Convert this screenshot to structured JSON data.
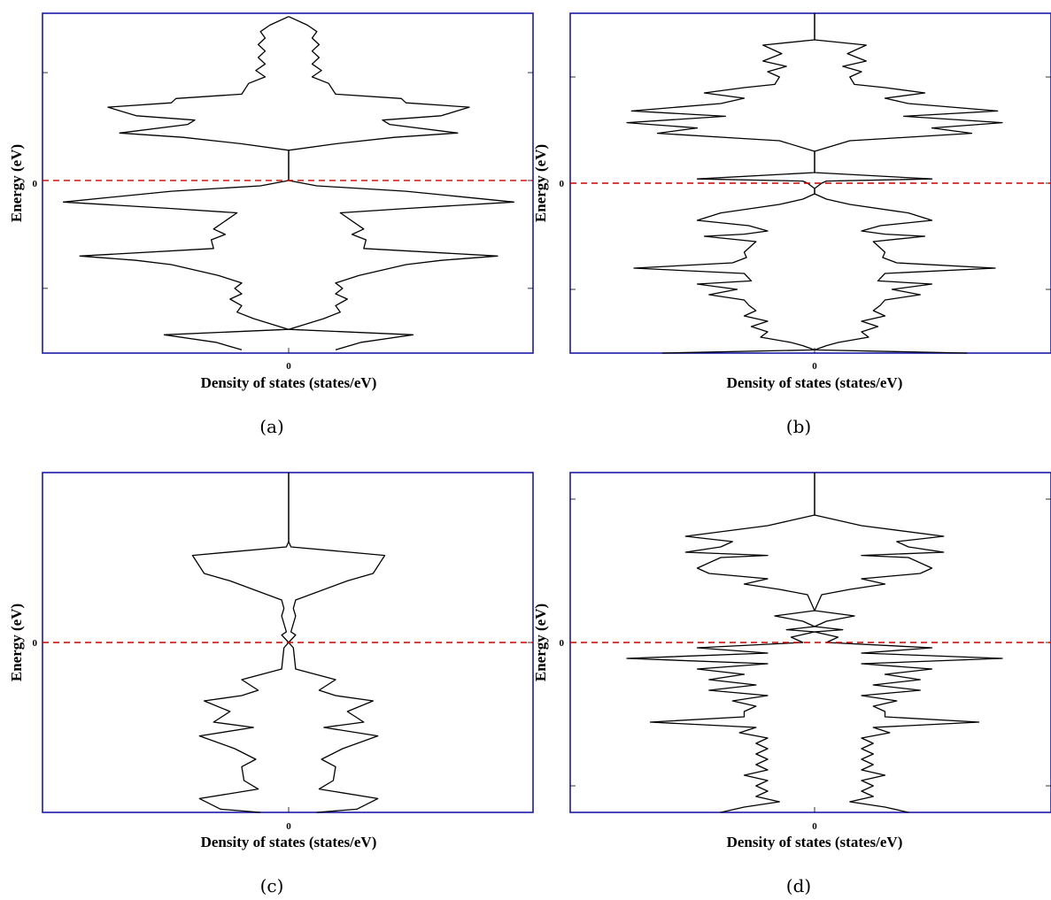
{
  "colors": {
    "frame": "#1a1aa6",
    "curve": "#000000",
    "fermi": "#cc0000",
    "background": "#ffffff"
  },
  "panels": [
    {
      "caption": "(a)",
      "chart_data": {
        "type": "line",
        "xlabel": "Density of states (states/eV)",
        "ylabel": "Energy (eV)",
        "xtick_labels": [
          "0"
        ],
        "ytick_labels": [
          "0"
        ],
        "fermi_level": 0,
        "line_style_fermi": "dashed",
        "grid": false,
        "ylim": [
          -1.6,
          1.55
        ],
        "ytick_values": [
          -1,
          0,
          1
        ],
        "xlim": [
          -1,
          1
        ],
        "symmetric_about_zero": true,
        "series": [
          {
            "energy": [
              1.52,
              1.44,
              1.38,
              1.32,
              1.26,
              1.2,
              1.14,
              1.08,
              1.02,
              0.96,
              0.9,
              0.8,
              0.76,
              0.72,
              0.68,
              0.6,
              0.56,
              0.52,
              0.44,
              0.4,
              0.34,
              0.28,
              0.22,
              0.18,
              0.15,
              0.12,
              0.1,
              0.08,
              0.04,
              0.02,
              0,
              -0.05,
              -0.1,
              -0.2,
              -0.26,
              -0.3,
              -0.45,
              -0.5,
              -0.55,
              -0.63,
              -0.7,
              -0.74,
              -0.78,
              -0.88,
              -0.95,
              -1.0,
              -1.05,
              -1.1,
              -1.16,
              -1.22,
              -1.28,
              -1.38,
              -1.43,
              -1.5,
              -1.57
            ],
            "dos": [
              0.0,
              0.08,
              0.12,
              0.1,
              0.13,
              0.1,
              0.13,
              0.1,
              0.14,
              0.1,
              0.17,
              0.2,
              0.48,
              0.5,
              0.77,
              0.65,
              0.4,
              0.43,
              0.72,
              0.45,
              0.2,
              0.0,
              0.0,
              0.0,
              0.0,
              0.0,
              0.0,
              0.0,
              0.0,
              0.0,
              0.0,
              0.12,
              0.5,
              0.96,
              0.5,
              0.22,
              0.32,
              0.27,
              0.33,
              0.32,
              0.89,
              0.65,
              0.5,
              0.3,
              0.2,
              0.23,
              0.2,
              0.25,
              0.2,
              0.22,
              0.15,
              0.0,
              0.53,
              0.31,
              0.2
            ]
          }
        ]
      }
    },
    {
      "caption": "(b)",
      "chart_data": {
        "type": "line",
        "xlabel": "Density of states (states/eV)",
        "ylabel": "Energy (eV)",
        "xtick_labels": [
          "0"
        ],
        "ytick_labels": [
          "0"
        ],
        "fermi_level": 0,
        "line_style_fermi": "dashed",
        "grid": false,
        "ylim": [
          -1.6,
          1.6
        ],
        "ytick_values": [
          -1,
          0,
          1
        ],
        "xlim": [
          -1,
          1
        ],
        "symmetric_about_zero": true,
        "series": [
          {
            "energy": [
              1.6,
              1.35,
              1.3,
              1.22,
              1.15,
              1.1,
              1.05,
              1.0,
              0.93,
              0.9,
              0.85,
              0.8,
              0.75,
              0.68,
              0.63,
              0.57,
              0.52,
              0.47,
              0.42,
              0.4,
              0.3,
              0.25,
              0.2,
              0.15,
              0.1,
              0.04,
              0.02,
              0.0,
              -0.05,
              -0.1,
              -0.15,
              -0.2,
              -0.28,
              -0.35,
              -0.4,
              -0.45,
              -0.48,
              -0.5,
              -0.55,
              -0.65,
              -0.7,
              -0.75,
              -0.8,
              -0.85,
              -0.92,
              -0.95,
              -1.0,
              -1.05,
              -1.1,
              -1.15,
              -1.2,
              -1.25,
              -1.3,
              -1.35,
              -1.4,
              -1.45,
              -1.5,
              -1.53,
              -1.57,
              -1.6
            ],
            "dos": [
              0.0,
              0.0,
              0.22,
              0.14,
              0.22,
              0.12,
              0.2,
              0.15,
              0.17,
              0.3,
              0.47,
              0.3,
              0.4,
              0.78,
              0.38,
              0.8,
              0.5,
              0.67,
              0.3,
              0.15,
              0.0,
              0.0,
              0.0,
              0.0,
              0.0,
              0.5,
              0.05,
              0.03,
              0.0,
              0.0,
              0.05,
              0.15,
              0.4,
              0.5,
              0.28,
              0.2,
              0.3,
              0.47,
              0.25,
              0.3,
              0.29,
              0.35,
              0.77,
              0.3,
              0.27,
              0.5,
              0.33,
              0.45,
              0.3,
              0.28,
              0.25,
              0.3,
              0.2,
              0.27,
              0.2,
              0.23,
              0.1,
              0.05,
              0.0,
              0.65
            ]
          }
        ]
      }
    },
    {
      "caption": "(c)",
      "chart_data": {
        "type": "line",
        "xlabel": "Density of states (states/eV)",
        "ylabel": "Energy (eV)",
        "xtick_labels": [
          "0"
        ],
        "ytick_labels": [
          "0"
        ],
        "fermi_level": 0,
        "line_style_fermi": "dashed",
        "grid": false,
        "ylim": [
          -1.6,
          1.6
        ],
        "ytick_values": [
          0
        ],
        "xlim": [
          -1,
          1
        ],
        "symmetric_about_zero": true,
        "series": [
          {
            "energy": [
              1.6,
              0.95,
              0.9,
              0.82,
              0.65,
              0.58,
              0.4,
              0.32,
              0.25,
              0.1,
              0.07,
              0.0,
              -0.05,
              -0.25,
              -0.35,
              -0.45,
              -0.5,
              -0.55,
              -0.65,
              -0.75,
              -0.8,
              -0.88,
              -1.0,
              -1.1,
              -1.17,
              -1.3,
              -1.38,
              -1.47,
              -1.57,
              -1.6
            ],
            "dos": [
              0.0,
              0.0,
              0.01,
              0.41,
              0.36,
              0.25,
              0.03,
              0.02,
              0.03,
              0.01,
              0.03,
              0.0,
              0.02,
              0.03,
              0.2,
              0.13,
              0.2,
              0.36,
              0.25,
              0.32,
              0.15,
              0.38,
              0.23,
              0.14,
              0.2,
              0.19,
              0.13,
              0.38,
              0.29,
              0.12
            ]
          }
        ]
      }
    },
    {
      "caption": "(d)",
      "chart_data": {
        "type": "line",
        "xlabel": "Density of states (states/eV)",
        "ylabel": "Energy (eV)",
        "xtick_labels": [
          "0"
        ],
        "ytick_labels": [
          "0"
        ],
        "fermi_level": 0,
        "line_style_fermi": "dashed",
        "grid": false,
        "ylim": [
          -1.6,
          1.6
        ],
        "ytick_values": [
          -1.35,
          0,
          1.35
        ],
        "xlim": [
          -1,
          1
        ],
        "symmetric_about_zero": true,
        "series": [
          {
            "energy": [
              1.6,
              1.2,
              1.15,
              1.1,
              1.0,
              0.95,
              0.9,
              0.85,
              0.82,
              0.8,
              0.7,
              0.65,
              0.6,
              0.55,
              0.5,
              0.45,
              0.4,
              0.3,
              0.25,
              0.2,
              0.15,
              0.12,
              0.1,
              0.05,
              0.0,
              -0.05,
              -0.1,
              -0.15,
              -0.2,
              -0.25,
              -0.3,
              -0.35,
              -0.4,
              -0.45,
              -0.5,
              -0.55,
              -0.6,
              -0.65,
              -0.7,
              -0.75,
              -0.8,
              -0.85,
              -0.9,
              -0.95,
              -1.0,
              -1.05,
              -1.1,
              -1.15,
              -1.2,
              -1.25,
              -1.3,
              -1.35,
              -1.4,
              -1.45,
              -1.5,
              -1.55,
              -1.6
            ],
            "dos": [
              0.0,
              0.0,
              0.1,
              0.2,
              0.55,
              0.35,
              0.4,
              0.55,
              0.2,
              0.4,
              0.5,
              0.45,
              0.2,
              0.3,
              0.15,
              0.03,
              0.02,
              0.0,
              0.17,
              0.05,
              0.0,
              0.12,
              0.0,
              0.1,
              0.05,
              0.5,
              0.2,
              0.8,
              0.2,
              0.5,
              0.3,
              0.45,
              0.25,
              0.45,
              0.2,
              0.35,
              0.25,
              0.3,
              0.3,
              0.7,
              0.25,
              0.32,
              0.2,
              0.25,
              0.2,
              0.25,
              0.2,
              0.25,
              0.2,
              0.3,
              0.2,
              0.25,
              0.2,
              0.25,
              0.15,
              0.3,
              0.4
            ]
          }
        ]
      }
    }
  ]
}
